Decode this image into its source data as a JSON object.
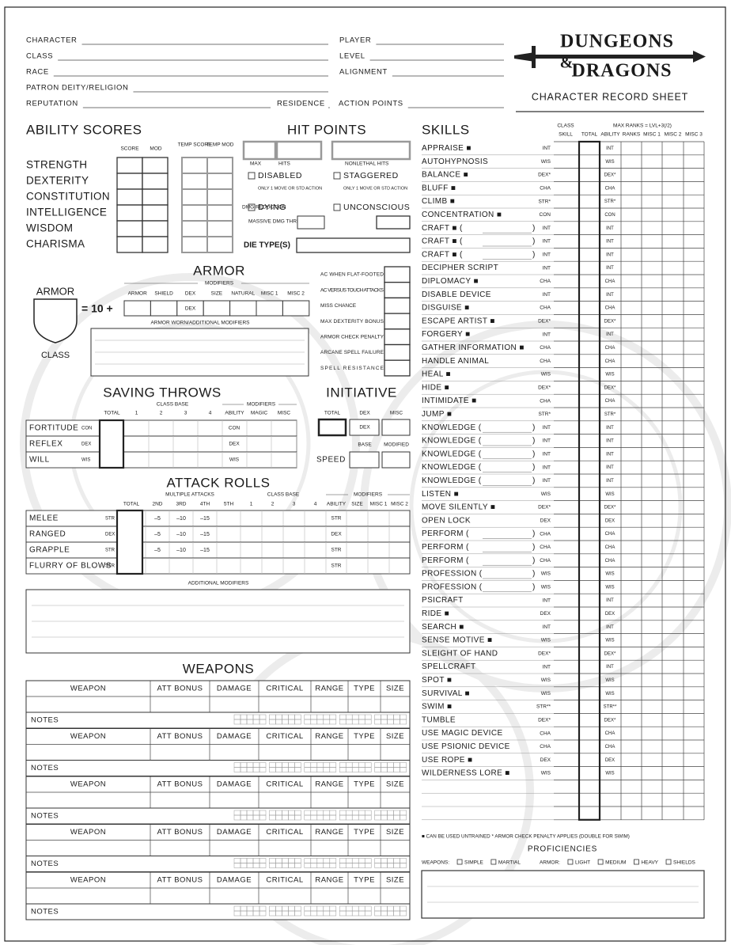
{
  "header": {
    "left_fields": [
      "CHARACTER",
      "CLASS",
      "RACE",
      "PATRON DEITY/RELIGION",
      "REPUTATION"
    ],
    "right_fields": [
      "PLAYER",
      "LEVEL",
      "ALIGNMENT"
    ],
    "residence": "RESIDENCE",
    "action_points": "ACTION POINTS",
    "logo": [
      "DUNGEONS",
      "&",
      "DRAGONS"
    ],
    "sheet_title": "CHARACTER RECORD SHEET"
  },
  "abilities": {
    "title": "ABILITY SCORES",
    "columns": [
      "SCORE",
      "MOD",
      "TEMP SCORE",
      "TEMP MOD"
    ],
    "names": [
      "STRENGTH",
      "DEXTERITY",
      "CONSTITUTION",
      "INTELLIGENCE",
      "WISDOM",
      "CHARISMA"
    ]
  },
  "hit_points": {
    "title": "HIT POINTS",
    "labels": [
      "MAX",
      "HITS",
      "NONLETHAL HITS"
    ],
    "conditions": [
      {
        "name": "DISABLED",
        "note": "ONLY 1 MOVE OR STD ACTION"
      },
      {
        "name": "STAGGERED",
        "note": "ONLY 1 MOVE OR STD ACTION"
      },
      {
        "name": "DYING"
      },
      {
        "name": "UNCONSCIOUS"
      }
    ],
    "damage_reduction": "DMG REDUCTION",
    "massive": "MASSIVE DMG THRESHOLD",
    "die_types": "DIE TYPE(S)"
  },
  "armor": {
    "title": "ARMOR",
    "modifiers": "MODIFIERS",
    "columns": [
      "ARMOR",
      "SHIELD",
      "DEX",
      "SIZE",
      "NATURAL",
      "MISC 1",
      "MISC 2"
    ],
    "badge": [
      "ARMOR",
      "CLASS"
    ],
    "base": "= 10 +",
    "worn": "ARMOR WORN/ADDITIONAL MODIFIERS",
    "extras": [
      "AC WHEN FLAT-FOOTED",
      "AC VERSUS TOUCH ATTACKS",
      "MISS CHANCE",
      "MAX DEXTERITY BONUS",
      "ARMOR CHECK PENALTY",
      "ARCANE SPELL FAILURE",
      "SPELL RESISTANCE"
    ]
  },
  "saving_throws": {
    "title": "SAVING THROWS",
    "class_base": "CLASS BASE",
    "modifiers": "MODIFIERS",
    "columns": [
      "TOTAL",
      "1",
      "2",
      "3",
      "4",
      "ABILITY",
      "MAGIC",
      "MISC"
    ],
    "rows": [
      {
        "name": "FORTITUDE",
        "ability": "CON"
      },
      {
        "name": "REFLEX",
        "ability": "DEX"
      },
      {
        "name": "WILL",
        "ability": "WIS"
      }
    ]
  },
  "initiative": {
    "title": "INITIATIVE",
    "columns": [
      "TOTAL",
      "DEX",
      "MISC"
    ],
    "speed": "SPEED",
    "speed_columns": [
      "BASE",
      "MODIFIED"
    ]
  },
  "attack_rolls": {
    "title": "ATTACK ROLLS",
    "multiple": "MULTIPLE ATTACKS",
    "class_base": "CLASS BASE",
    "modifiers": "MODIFIERS",
    "columns": [
      "TOTAL",
      "2ND",
      "3RD",
      "4TH",
      "5TH",
      "1",
      "2",
      "3",
      "4",
      "ABILITY",
      "SIZE",
      "MISC 1",
      "MISC 2"
    ],
    "rows": [
      {
        "name": "MELEE",
        "ability": "STR",
        "multiples": [
          "–5",
          "–10",
          "–15"
        ]
      },
      {
        "name": "RANGED",
        "ability": "DEX",
        "multiples": [
          "–5",
          "–10",
          "–15"
        ]
      },
      {
        "name": "GRAPPLE",
        "ability": "STR",
        "multiples": [
          "–5",
          "–10",
          "–15"
        ]
      },
      {
        "name": "FLURRY OF BLOWS",
        "ability": "STR"
      }
    ],
    "additional": "ADDITIONAL MODIFIERS"
  },
  "weapons": {
    "title": "WEAPONS",
    "columns": [
      "WEAPON",
      "ATT BONUS",
      "DAMAGE",
      "CRITICAL",
      "RANGE",
      "TYPE",
      "SIZE"
    ],
    "notes": "NOTES"
  },
  "skills": {
    "title": "SKILLS",
    "class_skill": [
      "CLASS",
      "SKILL"
    ],
    "max_ranks": "MAX RANKS = LVL+3(/2)",
    "columns": [
      "TOTAL",
      "ABILITY",
      "RANKS",
      "MISC 1",
      "MISC 2",
      "MISC 3"
    ],
    "paren_close": ")",
    "rows": [
      {
        "name": "APPRAISE ■",
        "ability": "INT"
      },
      {
        "name": "AUTOHYPNOSIS",
        "ability": "WIS"
      },
      {
        "name": "BALANCE ■",
        "ability": "DEX*"
      },
      {
        "name": "BLUFF ■",
        "ability": "CHA"
      },
      {
        "name": "CLIMB ■",
        "ability": "STR*"
      },
      {
        "name": "CONCENTRATION ■",
        "ability": "CON"
      },
      {
        "name": "CRAFT ■ (",
        "ability": "INT"
      },
      {
        "name": "CRAFT ■ (",
        "ability": "INT"
      },
      {
        "name": "CRAFT ■ (",
        "ability": "INT"
      },
      {
        "name": "DECIPHER SCRIPT",
        "ability": "INT"
      },
      {
        "name": "DIPLOMACY ■",
        "ability": "CHA"
      },
      {
        "name": "DISABLE DEVICE",
        "ability": "INT"
      },
      {
        "name": "DISGUISE ■",
        "ability": "CHA"
      },
      {
        "name": "ESCAPE ARTIST ■",
        "ability": "DEX*"
      },
      {
        "name": "FORGERY ■",
        "ability": "INT"
      },
      {
        "name": "GATHER INFORMATION ■",
        "ability": "CHA"
      },
      {
        "name": "HANDLE ANIMAL",
        "ability": "CHA"
      },
      {
        "name": "HEAL ■",
        "ability": "WIS"
      },
      {
        "name": "HIDE ■",
        "ability": "DEX*"
      },
      {
        "name": "INTIMIDATE ■",
        "ability": "CHA"
      },
      {
        "name": "JUMP ■",
        "ability": "STR*"
      },
      {
        "name": "KNOWLEDGE (",
        "ability": "INT"
      },
      {
        "name": "KNOWLEDGE (",
        "ability": "INT"
      },
      {
        "name": "KNOWLEDGE (",
        "ability": "INT"
      },
      {
        "name": "KNOWLEDGE (",
        "ability": "INT"
      },
      {
        "name": "KNOWLEDGE (",
        "ability": "INT"
      },
      {
        "name": "LISTEN ■",
        "ability": "WIS"
      },
      {
        "name": "MOVE SILENTLY ■",
        "ability": "DEX*"
      },
      {
        "name": "OPEN LOCK",
        "ability": "DEX"
      },
      {
        "name": "PERFORM (",
        "ability": "CHA"
      },
      {
        "name": "PERFORM (",
        "ability": "CHA"
      },
      {
        "name": "PERFORM (",
        "ability": "CHA"
      },
      {
        "name": "PROFESSION (",
        "ability": "WIS"
      },
      {
        "name": "PROFESSION (",
        "ability": "WIS"
      },
      {
        "name": "PSICRAFT",
        "ability": "INT"
      },
      {
        "name": "RIDE ■",
        "ability": "DEX"
      },
      {
        "name": "SEARCH ■",
        "ability": "INT"
      },
      {
        "name": "SENSE MOTIVE ■",
        "ability": "WIS"
      },
      {
        "name": "SLEIGHT OF HAND",
        "ability": "DEX*"
      },
      {
        "name": "SPELLCRAFT",
        "ability": "INT"
      },
      {
        "name": "SPOT ■",
        "ability": "WIS"
      },
      {
        "name": "SURVIVAL ■",
        "ability": "WIS"
      },
      {
        "name": "SWIM ■",
        "ability": "STR**"
      },
      {
        "name": "TUMBLE",
        "ability": "DEX*"
      },
      {
        "name": "USE MAGIC DEVICE",
        "ability": "CHA"
      },
      {
        "name": "USE PSIONIC DEVICE",
        "ability": "CHA"
      },
      {
        "name": "USE ROPE ■",
        "ability": "DEX"
      },
      {
        "name": "WILDERNESS LORE ■",
        "ability": "WIS"
      }
    ],
    "footnote": "■ CAN BE USED UNTRAINED    * ARMOR CHECK PENALTY APPLIES (DOUBLE FOR SWIM)"
  },
  "proficiencies": {
    "title": "PROFICIENCIES",
    "weapons_label": "WEAPONS:",
    "weapons": [
      "SIMPLE",
      "MARTIAL"
    ],
    "armor_label": "ARMOR:",
    "armor": [
      "LIGHT",
      "MEDIUM",
      "HEAVY",
      "SHIELDS"
    ]
  }
}
